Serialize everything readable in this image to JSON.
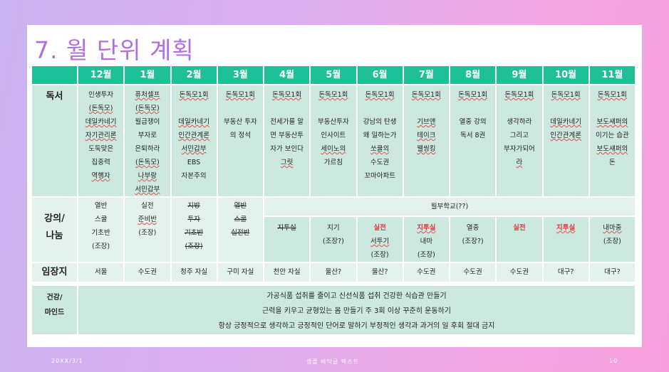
{
  "title": "7. 월 단위 계획",
  "months": [
    "12월",
    "1월",
    "2월",
    "3월",
    "4월",
    "5월",
    "6월",
    "7월",
    "8월",
    "9월",
    "10월",
    "11월"
  ],
  "rows": {
    "reading": "독서",
    "lecture": "강의/\n나눔",
    "location": "임장지",
    "health": "건강/\n마인드"
  },
  "reading": [
    [
      "인생투자",
      "(돈독모)",
      "데일카네기",
      "자기관리론",
      "도둑맞은",
      "집중력",
      "역행자"
    ],
    [
      "퓨처셀프",
      "(돈독모)",
      "월급쟁이",
      "부자로",
      "은퇴하라",
      "(돈독모)",
      "나부랑",
      "서민갑부"
    ],
    [
      "돈독모1회",
      "",
      "데일카네기",
      "인간관계론",
      "서민갑부",
      "EBS",
      "자본주의"
    ],
    [
      "돈독모1회",
      "",
      "부동산 투자",
      "의 정석"
    ],
    [
      "돈독모1회",
      "",
      "전세가를 알",
      "면 부동산투",
      "자가 보인다",
      "그릿"
    ],
    [
      "돈독모1회",
      "",
      "부동산투자",
      "인사이트",
      "세이노의",
      "가르침"
    ],
    [
      "돈독모1회",
      "",
      "강남의 탄생",
      "왜 일하는가",
      "쏘쿨의",
      "수도권",
      "꼬마아파트"
    ],
    [
      "돈독모1회",
      "",
      "기브앤",
      "테이크",
      "웰씽킹"
    ],
    [
      "돈독모1회",
      "",
      "열중 강의",
      "독서 8권"
    ],
    [
      "돈독모1회",
      "",
      "생각하라",
      "그리고",
      "부자가되어",
      "라"
    ],
    [
      "돈독모1회",
      "",
      "데일카네기",
      "인간관계론"
    ],
    [
      "돈독모1회",
      "",
      "보도섀퍼의",
      "이기는 습관",
      "보도섀퍼의",
      "돈"
    ]
  ],
  "lecture_span": "월부학교(??)",
  "lecture": [
    [
      "열반",
      "스쿨",
      "기초반",
      "(조장)"
    ],
    [
      "실전",
      "준비반",
      "(조장)"
    ],
    [
      "지방",
      "투자",
      "기초반",
      "(조장)"
    ],
    [
      "열반",
      "스쿨",
      "실전반"
    ],
    [
      "지투실"
    ],
    [
      "지기",
      "(조장?)"
    ],
    [
      "실전",
      "서투기",
      "(조장)"
    ],
    [
      "지투실",
      "내마",
      "(조장)"
    ],
    [
      "열중",
      "(조장?)"
    ],
    [
      "실전"
    ],
    [
      "지투실"
    ],
    [
      "내마중",
      "(조장)"
    ]
  ],
  "location": [
    "서울",
    "수도권",
    "청주 자실",
    "구미 자실",
    "천안 자실",
    "울산?",
    "울산?",
    "수도권",
    "수도권",
    "수도권",
    "대구?",
    "대구?"
  ],
  "health": [
    "가공식품 섭취를 줄이고 신선식품 섭취 건강한 식습관 만들기",
    "근력을 키우고 균형있는 몸 만들기  주 3회 이상 꾸준히 운동하기",
    "항상 긍정적으로 생각하고 긍정적인 단어로 말하기  부정적인 생각과 과거의 일 후회 절대 금지"
  ],
  "footer": {
    "date": "20XX/3/1",
    "center": "샘플 바닥글 텍스트",
    "page": "10"
  },
  "colors": {
    "header": "#1fbf98",
    "cell": "#cde8df",
    "cell_light": "#e3f2ed",
    "title": "#b16ee0",
    "highlight": "#e0363f"
  }
}
